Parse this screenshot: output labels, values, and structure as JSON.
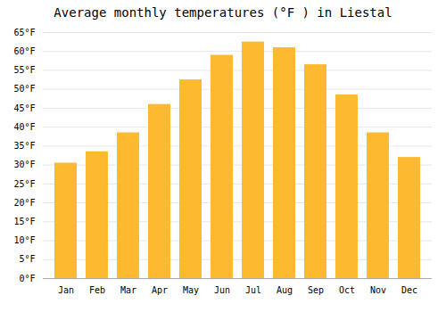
{
  "chart_data": {
    "type": "bar",
    "title": "Average monthly temperatures (°F ) in Liestal",
    "categories": [
      "Jan",
      "Feb",
      "Mar",
      "Apr",
      "May",
      "Jun",
      "Jul",
      "Aug",
      "Sep",
      "Oct",
      "Nov",
      "Dec"
    ],
    "values": [
      30.5,
      33.5,
      38.5,
      46.0,
      52.5,
      59.0,
      62.5,
      61.0,
      56.5,
      48.5,
      38.5,
      32.0
    ],
    "color": "#FDB930",
    "ylim": [
      0,
      65
    ],
    "yticks": [
      {
        "value": 0,
        "label": "0°F"
      },
      {
        "value": 5,
        "label": "5°F"
      },
      {
        "value": 10,
        "label": "10°F"
      },
      {
        "value": 15,
        "label": "15°F"
      },
      {
        "value": 20,
        "label": "20°F"
      },
      {
        "value": 25,
        "label": "25°F"
      },
      {
        "value": 30,
        "label": "30°F"
      },
      {
        "value": 35,
        "label": "35°F"
      },
      {
        "value": 40,
        "label": "40°F"
      },
      {
        "value": 45,
        "label": "45°F"
      },
      {
        "value": 50,
        "label": "50°F"
      },
      {
        "value": 55,
        "label": "55°F"
      },
      {
        "value": 60,
        "label": "60°F"
      },
      {
        "value": 65,
        "label": "65°F"
      }
    ],
    "grid": true
  }
}
